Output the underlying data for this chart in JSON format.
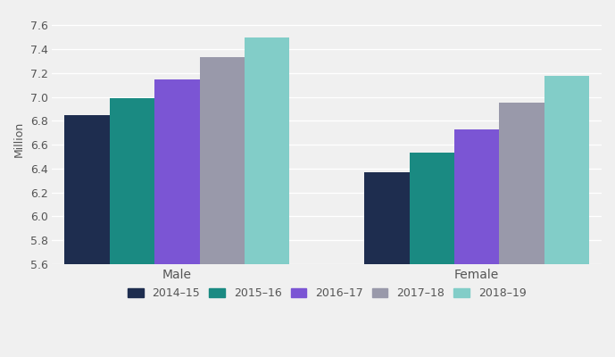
{
  "categories": [
    "Male",
    "Female"
  ],
  "years": [
    "2014–15",
    "2015–16",
    "2016–17",
    "2017–18",
    "2018–19"
  ],
  "values": {
    "Male": [
      6.85,
      6.99,
      7.15,
      7.33,
      7.5
    ],
    "Female": [
      6.37,
      6.53,
      6.73,
      6.95,
      7.18
    ]
  },
  "colors": [
    "#1e2d4f",
    "#1a8a82",
    "#7b55d4",
    "#9999aa",
    "#82cdc8"
  ],
  "ylabel": "Million",
  "ylim": [
    5.6,
    7.7
  ],
  "yticks": [
    5.6,
    5.8,
    6.0,
    6.2,
    6.4,
    6.6,
    6.8,
    7.0,
    7.2,
    7.4,
    7.6
  ],
  "background_color": "#f0f0f0",
  "grid_color": "#ffffff",
  "bar_width": 0.09,
  "group_centers": [
    0.3,
    0.9
  ]
}
